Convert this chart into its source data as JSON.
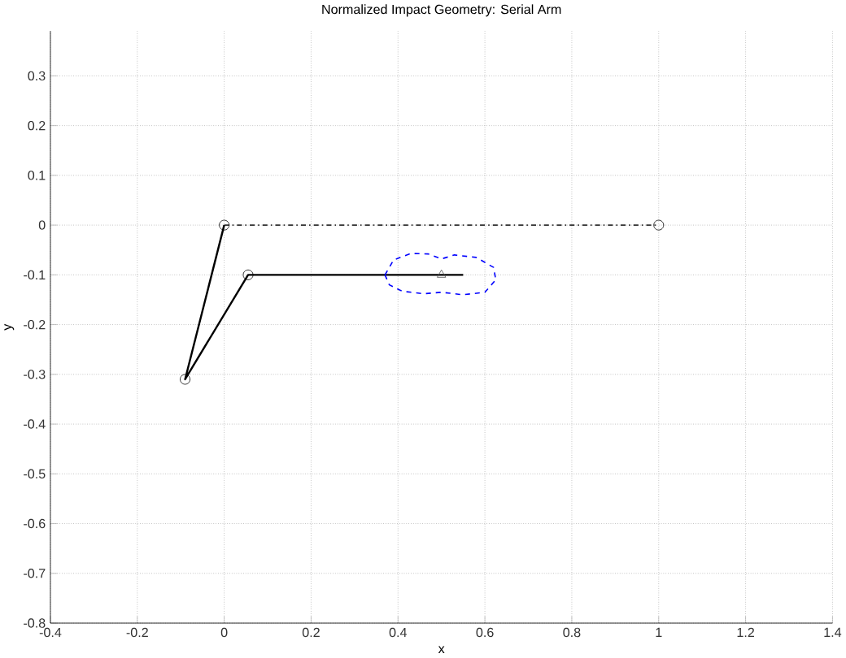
{
  "chart_data": {
    "type": "line",
    "title": "Normalized Impact Geometry: Serial Arm",
    "xlabel": "x",
    "ylabel": "y",
    "xlim": [
      -0.4,
      1.4
    ],
    "ylim": [
      -0.8,
      0.39
    ],
    "xticks": [
      -0.4,
      -0.2,
      0,
      0.2,
      0.4,
      0.6,
      0.8,
      1,
      1.2,
      1.4
    ],
    "yticks": [
      -0.8,
      -0.7,
      -0.6,
      -0.5,
      -0.4,
      -0.3,
      -0.2,
      -0.1,
      0,
      0.1,
      0.2,
      0.3
    ],
    "grid": true,
    "series": [
      {
        "color": "#333333",
        "line_style": "dashdot",
        "marker": "none",
        "x": [
          0,
          1
        ],
        "values": [
          0,
          0
        ]
      },
      {
        "color": "#000000",
        "line_style": "solid",
        "marker": "none",
        "x": [
          0,
          -0.09,
          0.055,
          0.55
        ],
        "values": [
          0,
          -0.31,
          -0.1,
          -0.1
        ]
      },
      {
        "type": "scatter",
        "color": "#000000",
        "marker": "circle",
        "x": [
          0,
          -0.09,
          0.055,
          1
        ],
        "values": [
          0,
          -0.31,
          -0.1,
          0
        ]
      },
      {
        "type": "scatter",
        "color": "#555555",
        "marker": "triangle",
        "x": [
          0.5
        ],
        "values": [
          -0.1
        ]
      },
      {
        "color": "#0000ff",
        "line_style": "dashed",
        "marker": "none",
        "x": [
          0.37,
          0.39,
          0.43,
          0.47,
          0.5,
          0.53,
          0.58,
          0.62,
          0.625
        ],
        "values": [
          -0.1,
          -0.07,
          -0.057,
          -0.058,
          -0.068,
          -0.06,
          -0.065,
          -0.085,
          -0.11
        ]
      },
      {
        "color": "#0000ff",
        "line_style": "dashed",
        "marker": "none",
        "x": [
          0.37,
          0.38,
          0.41,
          0.46,
          0.5,
          0.55,
          0.6,
          0.625
        ],
        "values": [
          -0.1,
          -0.12,
          -0.133,
          -0.138,
          -0.135,
          -0.14,
          -0.135,
          -0.11
        ]
      }
    ]
  }
}
